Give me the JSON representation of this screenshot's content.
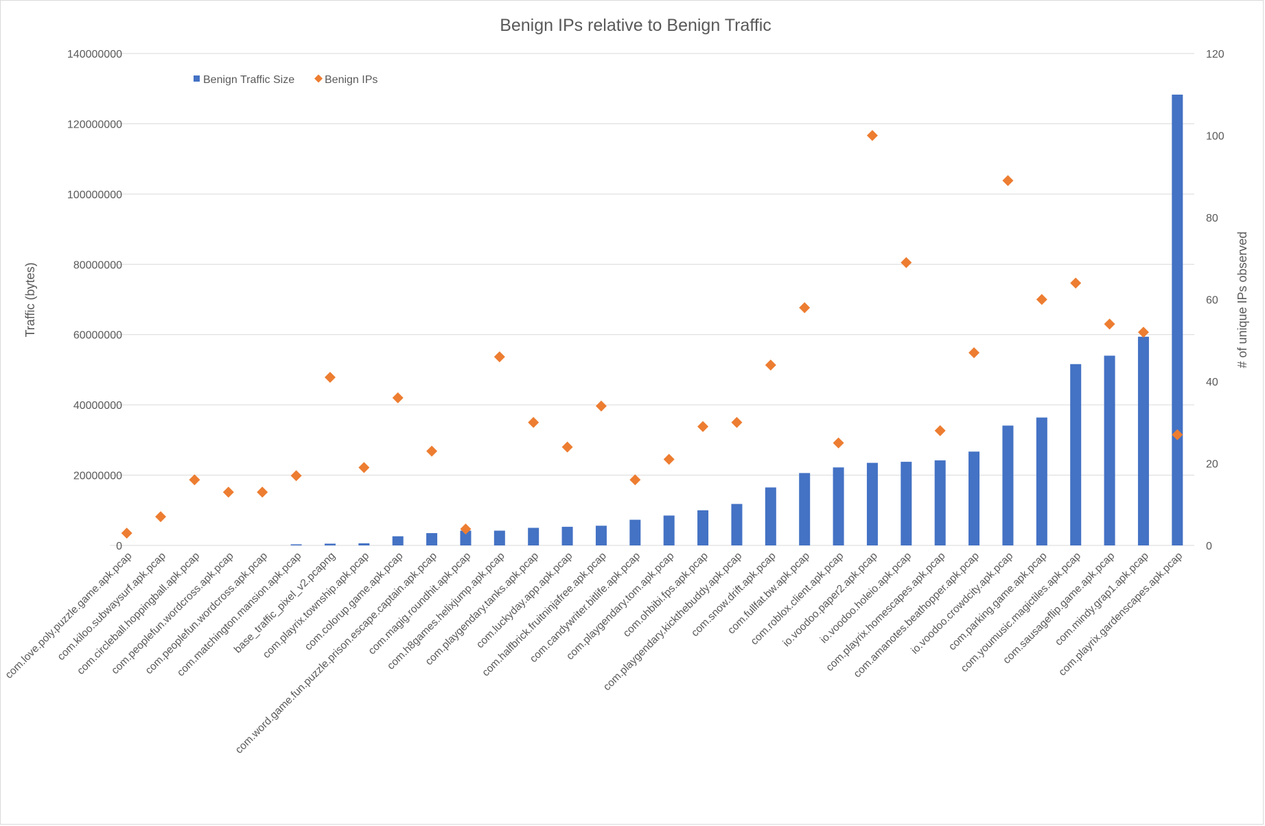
{
  "chart_data": {
    "type": "bar",
    "title": "Benign IPs relative to Benign Traffic",
    "ylabel": "Traffic (bytes)",
    "y2label": "# of unique IPs observed",
    "ylim": [
      0,
      140000000
    ],
    "y2lim": [
      0,
      120
    ],
    "yticks": [
      "0",
      "20000000",
      "40000000",
      "60000000",
      "80000000",
      "100000000",
      "120000000",
      "140000000"
    ],
    "y2ticks": [
      "0",
      "20",
      "40",
      "60",
      "80",
      "100",
      "120"
    ],
    "grid": true,
    "legend_position": "top-left",
    "categories": [
      "com.love.poly.puzzle.game.apk.pcap",
      "com.kiloo.subwaysurf.apk.pcap",
      "com.circleball.hoppingball.apk.pcap",
      "com.peoplefun.wordcross.apk.pcap",
      "com.peoplefun.wordcross.apk.pcap",
      "com.matchington.mansion.apk.pcap",
      "base_traffic_pixel_v2.pcapng",
      "com.playrix.township.apk.pcap",
      "com.colorup.game.apk.pcap",
      "com.word.game.fun.puzzle.prison.escape.captain.apk.pcap",
      "com.magig.roundhit.apk.pcap",
      "com.h8games.helixjump.apk.pcap",
      "com.playgendary.tanks.apk.pcap",
      "com.luckyday.app.apk.pcap",
      "com.halfbrick.fruitninjafree.apk.pcap",
      "com.candywriter.bitlife.apk.pcap",
      "com.playgendary.tom.apk.pcap",
      "com.ohbibi.fps.apk.pcap",
      "com.playgendary.kickthebuddy.apk.pcap",
      "com.snow.drift.apk.pcap",
      "com.fullfat.bw.apk.pcap",
      "com.roblox.client.apk.pcap",
      "io.voodoo.paper2.apk.pcap",
      "io.voodoo.holeio.apk.pcap",
      "com.playrix.homescapes.apk.pcap",
      "com.amanotes.beathopper.apk.pcap",
      "io.voodoo.crowdcity.apk.pcap",
      "com.parking.game.apk.pcap",
      "com.youmusic.magictiles.apk.pcap",
      "com.sausageflip.game.apk.pcap",
      "com.mindy.grap1.apk.pcap",
      "com.playrix.gardenscapes.apk.pcap"
    ],
    "series": [
      {
        "name": "Benign Traffic Size",
        "type": "bar",
        "axis": "left",
        "color": "#4472C4",
        "values": [
          0,
          0,
          0,
          0,
          0,
          300000,
          500000,
          600000,
          2600000,
          3500000,
          4200000,
          4200000,
          5000000,
          5300000,
          5600000,
          7300000,
          8500000,
          10000000,
          11800000,
          16500000,
          20600000,
          22200000,
          23500000,
          23800000,
          24200000,
          26700000,
          34100000,
          36400000,
          51600000,
          54000000,
          59400000,
          128300000
        ]
      },
      {
        "name": "Benign IPs",
        "type": "scatter",
        "axis": "right",
        "color": "#ED7D31",
        "marker": "diamond",
        "values": [
          3,
          7,
          16,
          13,
          13,
          17,
          41,
          19,
          36,
          23,
          4,
          46,
          30,
          24,
          34,
          16,
          21,
          29,
          30,
          44,
          58,
          25,
          100,
          69,
          28,
          47,
          89,
          60,
          64,
          54,
          52,
          27
        ]
      }
    ]
  }
}
